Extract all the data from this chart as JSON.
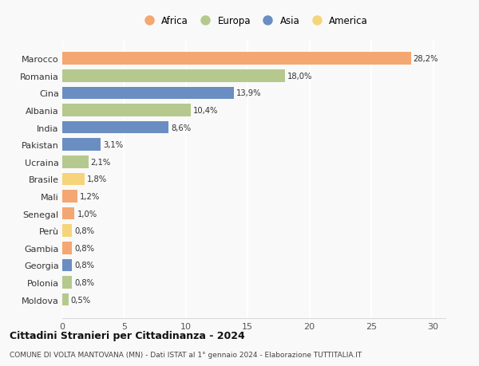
{
  "countries": [
    "Marocco",
    "Romania",
    "Cina",
    "Albania",
    "India",
    "Pakistan",
    "Ucraina",
    "Brasile",
    "Mali",
    "Senegal",
    "Perù",
    "Gambia",
    "Georgia",
    "Polonia",
    "Moldova"
  ],
  "values": [
    28.2,
    18.0,
    13.9,
    10.4,
    8.6,
    3.1,
    2.1,
    1.8,
    1.2,
    1.0,
    0.8,
    0.8,
    0.8,
    0.8,
    0.5
  ],
  "labels": [
    "28,2%",
    "18,0%",
    "13,9%",
    "10,4%",
    "8,6%",
    "3,1%",
    "2,1%",
    "1,8%",
    "1,2%",
    "1,0%",
    "0,8%",
    "0,8%",
    "0,8%",
    "0,8%",
    "0,5%"
  ],
  "continents": [
    "Africa",
    "Europa",
    "Asia",
    "Europa",
    "Asia",
    "Asia",
    "Europa",
    "America",
    "Africa",
    "Africa",
    "America",
    "Africa",
    "Asia",
    "Europa",
    "Europa"
  ],
  "colors": {
    "Africa": "#F4A770",
    "Europa": "#B5C98E",
    "Asia": "#6B8EC2",
    "America": "#F5D47A"
  },
  "legend_order": [
    "Africa",
    "Europa",
    "Asia",
    "America"
  ],
  "title": "Cittadini Stranieri per Cittadinanza - 2024",
  "subtitle": "COMUNE DI VOLTA MANTOVANA (MN) - Dati ISTAT al 1° gennaio 2024 - Elaborazione TUTTITALIA.IT",
  "xlim": [
    0,
    31
  ],
  "xticks": [
    0,
    5,
    10,
    15,
    20,
    25,
    30
  ],
  "background_color": "#f9f9f9",
  "bar_height": 0.72
}
